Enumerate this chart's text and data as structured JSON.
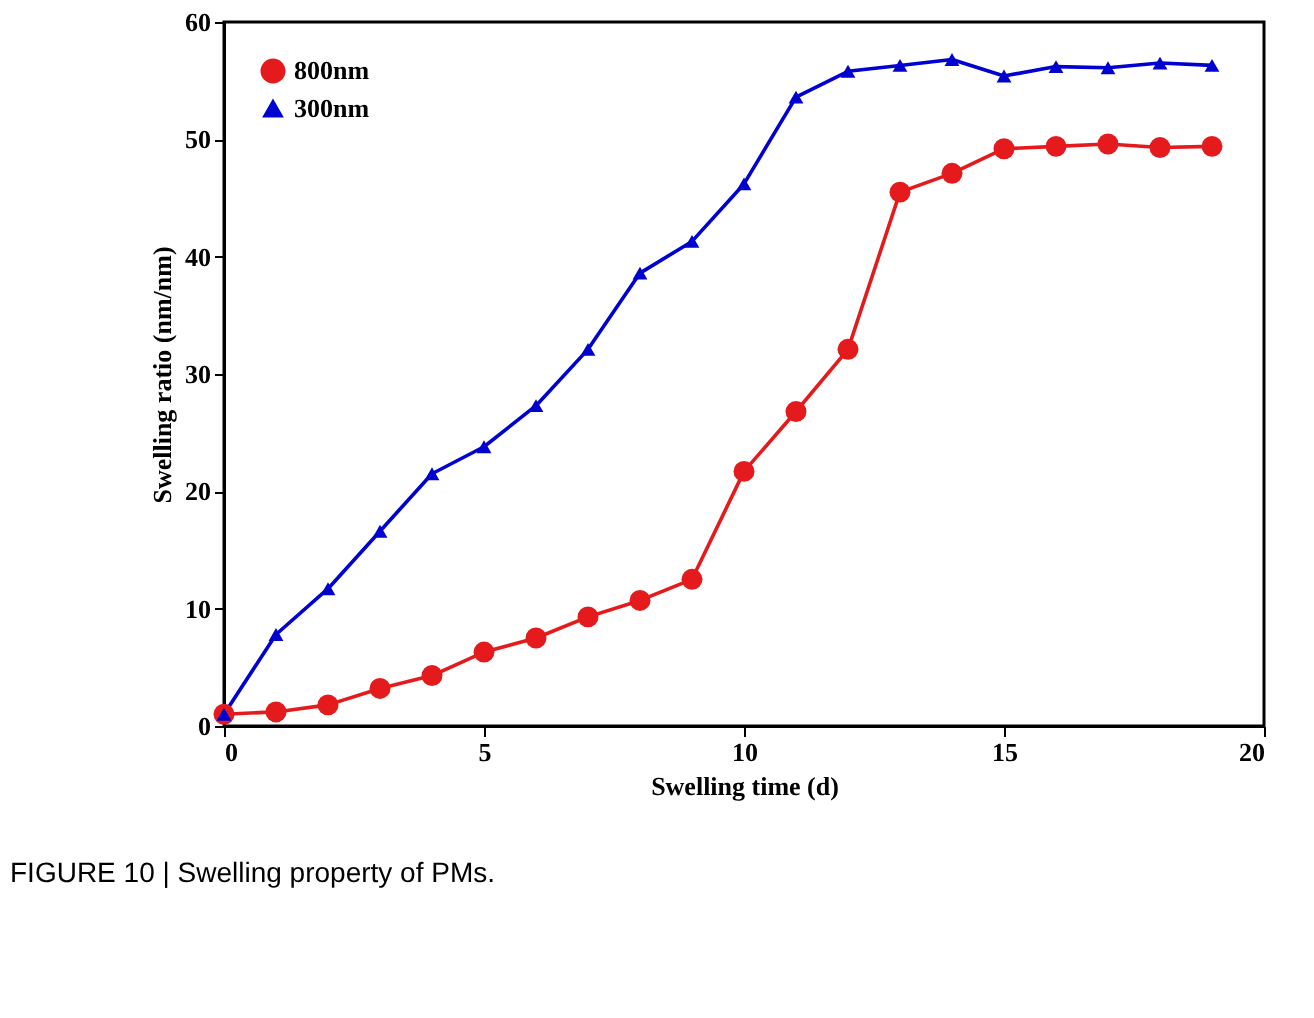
{
  "chart_data": {
    "type": "line",
    "xlabel": "Swelling time (d)",
    "ylabel": "Swelling ratio (nm/nm)",
    "x": [
      0,
      1,
      2,
      3,
      4,
      5,
      6,
      7,
      8,
      9,
      10,
      11,
      12,
      13,
      14,
      15,
      16,
      17,
      18,
      19
    ],
    "series": [
      {
        "name": "800nm",
        "color": "#e41a1c",
        "marker": "circle",
        "values": [
          1,
          1.2,
          1.8,
          3.2,
          4.3,
          6.3,
          7.5,
          9.3,
          10.7,
          12.5,
          21.7,
          26.8,
          32.1,
          45.5,
          47.1,
          49.2,
          49.4,
          49.6,
          49.3,
          49.4
        ]
      },
      {
        "name": "300nm",
        "color": "#0000d0",
        "marker": "triangle",
        "values": [
          1,
          7.8,
          11.7,
          16.6,
          21.5,
          23.8,
          27.3,
          32.1,
          38.6,
          41.3,
          46.2,
          53.6,
          55.8,
          56.3,
          56.8,
          55.4,
          56.2,
          56.1,
          56.5,
          56.3
        ]
      }
    ],
    "xlim": [
      0,
      20
    ],
    "xticks": [
      0,
      5,
      10,
      15,
      20
    ],
    "ylim": [
      0,
      60
    ],
    "yticks": [
      0,
      10,
      20,
      30,
      40,
      50,
      60
    ],
    "grid": false,
    "legend": "top left",
    "line_style": "solid",
    "annotations": [
      "FIGURE 10 | Swelling property of PMs."
    ]
  }
}
